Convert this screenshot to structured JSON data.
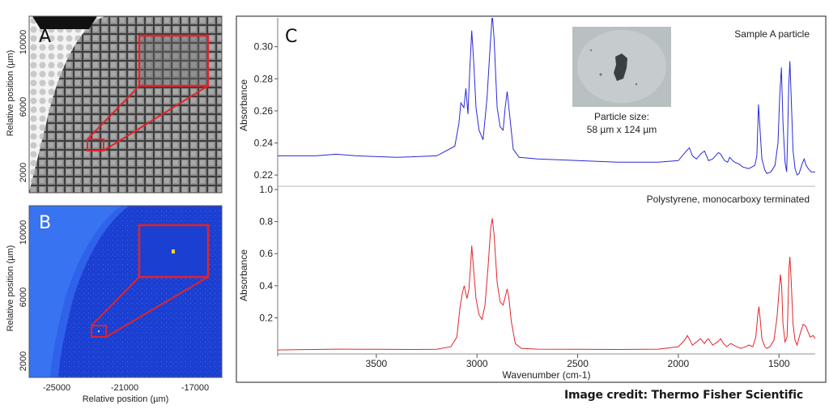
{
  "credit": "Image credit: Thermo Fisher Scientific",
  "panel_labels": {
    "a": "A",
    "b": "B",
    "c": "C"
  },
  "left_panels": {
    "ylabel": "Relative position (µm)",
    "xlabel": "Relative position (µm)",
    "y_ticks": [
      "10000",
      "6000",
      "2000"
    ],
    "x_ticks": [
      "-25000",
      "-21000",
      "-17000"
    ]
  },
  "inset": {
    "caption_line1": "Particle size:",
    "caption_line2": "58 µm x 124 µm"
  },
  "colors": {
    "top_series": "#2a2ad6",
    "bottom_series": "#e0262b",
    "highlight_box": "#e3232a",
    "map_blue": "#1b3fd0"
  },
  "chart_data": [
    {
      "type": "line",
      "panel": "C-top",
      "series": [
        {
          "name": "Sample A particle",
          "x": [
            3990,
            3800,
            3700,
            3600,
            3400,
            3200,
            3110,
            3090,
            3080,
            3065,
            3055,
            3045,
            3035,
            3026,
            3016,
            3005,
            2990,
            2970,
            2950,
            2935,
            2924,
            2915,
            2900,
            2885,
            2870,
            2860,
            2850,
            2840,
            2820,
            2790,
            2700,
            2500,
            2300,
            2100,
            2000,
            1960,
            1945,
            1930,
            1910,
            1890,
            1870,
            1860,
            1850,
            1830,
            1800,
            1790,
            1770,
            1755,
            1745,
            1730,
            1720,
            1700,
            1690,
            1680,
            1650,
            1620,
            1610,
            1602,
            1595,
            1585,
            1570,
            1560,
            1540,
            1520,
            1505,
            1496,
            1488,
            1480,
            1470,
            1462,
            1458,
            1452,
            1446,
            1440,
            1430,
            1420,
            1410,
            1400,
            1385,
            1375,
            1365,
            1355,
            1340,
            1320
          ],
          "y": [
            0.232,
            0.232,
            0.233,
            0.232,
            0.231,
            0.232,
            0.238,
            0.252,
            0.265,
            0.262,
            0.274,
            0.258,
            0.288,
            0.31,
            0.29,
            0.262,
            0.248,
            0.242,
            0.268,
            0.3,
            0.32,
            0.305,
            0.262,
            0.25,
            0.248,
            0.262,
            0.272,
            0.26,
            0.236,
            0.231,
            0.23,
            0.229,
            0.228,
            0.228,
            0.229,
            0.235,
            0.237,
            0.232,
            0.23,
            0.233,
            0.235,
            0.232,
            0.229,
            0.23,
            0.234,
            0.233,
            0.229,
            0.228,
            0.231,
            0.229,
            0.228,
            0.227,
            0.226,
            0.225,
            0.224,
            0.226,
            0.232,
            0.264,
            0.25,
            0.23,
            0.223,
            0.221,
            0.222,
            0.226,
            0.24,
            0.27,
            0.287,
            0.252,
            0.228,
            0.222,
            0.24,
            0.275,
            0.291,
            0.27,
            0.235,
            0.224,
            0.22,
            0.221,
            0.227,
            0.23,
            0.226,
            0.224,
            0.222,
            0.222
          ]
        }
      ],
      "ylabel": "Absorbance",
      "y_ticks": [
        0.22,
        0.24,
        0.26,
        0.28,
        0.3
      ],
      "ylim": [
        0.213,
        0.318
      ],
      "xlim": [
        3990,
        1320
      ],
      "grid": false
    },
    {
      "type": "line",
      "panel": "C-bottom",
      "series": [
        {
          "name": "Polystyrene, monocarboxy terminated",
          "x": [
            3990,
            3700,
            3500,
            3300,
            3200,
            3130,
            3100,
            3085,
            3072,
            3063,
            3050,
            3040,
            3030,
            3026,
            3018,
            3005,
            2990,
            2975,
            2960,
            2945,
            2932,
            2924,
            2915,
            2900,
            2885,
            2870,
            2858,
            2850,
            2842,
            2830,
            2810,
            2780,
            2700,
            2500,
            2300,
            2100,
            2000,
            1970,
            1955,
            1942,
            1930,
            1910,
            1890,
            1870,
            1860,
            1850,
            1830,
            1805,
            1790,
            1775,
            1760,
            1740,
            1725,
            1710,
            1690,
            1665,
            1650,
            1630,
            1615,
            1605,
            1600,
            1594,
            1585,
            1570,
            1560,
            1545,
            1525,
            1510,
            1500,
            1493,
            1487,
            1480,
            1470,
            1460,
            1455,
            1450,
            1446,
            1440,
            1430,
            1420,
            1410,
            1395,
            1380,
            1368,
            1358,
            1345,
            1330,
            1320
          ],
          "y": [
            0.0,
            0.005,
            0.004,
            0.003,
            0.004,
            0.02,
            0.08,
            0.26,
            0.36,
            0.4,
            0.32,
            0.38,
            0.56,
            0.65,
            0.52,
            0.32,
            0.22,
            0.19,
            0.28,
            0.52,
            0.76,
            0.82,
            0.72,
            0.42,
            0.3,
            0.28,
            0.34,
            0.38,
            0.33,
            0.18,
            0.04,
            0.01,
            0.005,
            0.004,
            0.003,
            0.005,
            0.02,
            0.06,
            0.09,
            0.06,
            0.03,
            0.05,
            0.07,
            0.04,
            0.06,
            0.07,
            0.03,
            0.05,
            0.07,
            0.04,
            0.02,
            0.04,
            0.03,
            0.02,
            0.01,
            0.02,
            0.03,
            0.02,
            0.08,
            0.22,
            0.27,
            0.2,
            0.07,
            0.02,
            0.01,
            0.02,
            0.06,
            0.2,
            0.36,
            0.47,
            0.4,
            0.16,
            0.05,
            0.08,
            0.28,
            0.52,
            0.58,
            0.44,
            0.16,
            0.06,
            0.03,
            0.1,
            0.16,
            0.15,
            0.12,
            0.08,
            0.09,
            0.07
          ]
        }
      ],
      "xlabel": "Wavenumber (cm-1)",
      "ylabel": "Absorbance",
      "y_ticks": [
        0.2,
        0.4,
        0.6,
        0.8,
        1.0
      ],
      "ylim": [
        -0.04,
        1.0
      ],
      "x_ticks": [
        3500,
        3000,
        2500,
        2000,
        1500
      ],
      "xlim": [
        3990,
        1320
      ],
      "grid": false
    }
  ]
}
